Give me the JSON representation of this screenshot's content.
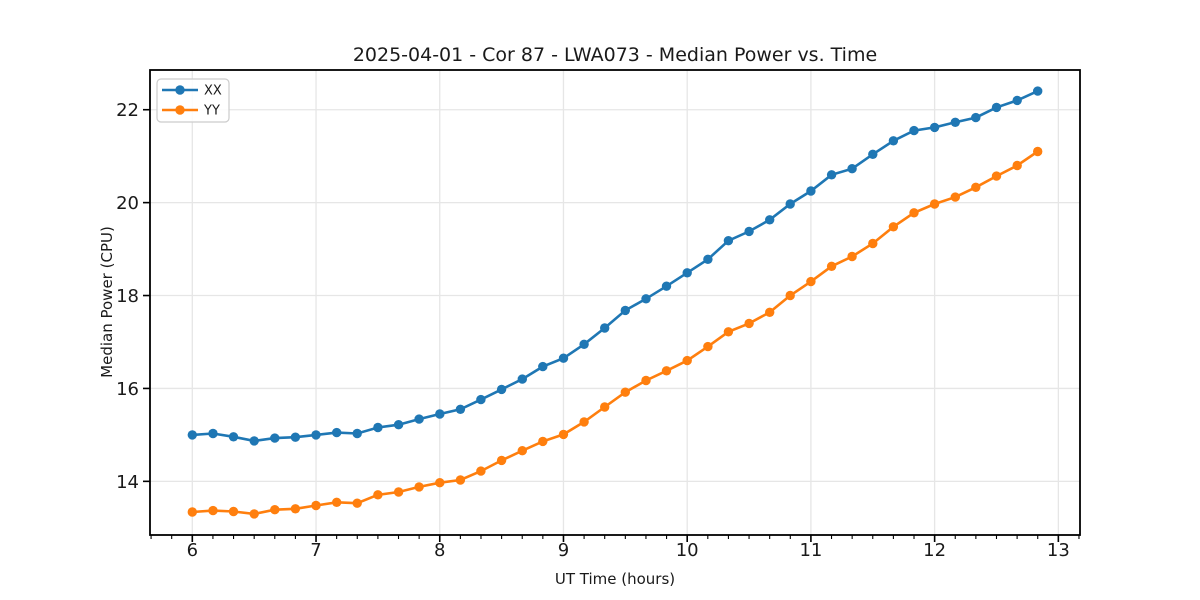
{
  "chart_data": {
    "type": "line",
    "title": "2025-04-01 - Cor 87 - LWA073 - Median Power vs. Time",
    "xlabel": "UT Time (hours)",
    "ylabel": "Median Power (CPU)",
    "grid": true,
    "legend_position": "upper left",
    "xlim": [
      5.658,
      13.175
    ],
    "ylim": [
      12.845,
      22.855
    ],
    "x_ticks": [
      6,
      7,
      8,
      9,
      10,
      11,
      12,
      13
    ],
    "y_ticks": [
      14,
      16,
      18,
      20,
      22
    ],
    "x_minor_step": 0.1667,
    "grid_color": "#e6e6e6",
    "spine_color": "#000000",
    "x": [
      6.0,
      6.167,
      6.333,
      6.5,
      6.667,
      6.833,
      7.0,
      7.167,
      7.333,
      7.5,
      7.667,
      7.833,
      8.0,
      8.167,
      8.333,
      8.5,
      8.667,
      8.833,
      9.0,
      9.167,
      9.333,
      9.5,
      9.667,
      9.833,
      10.0,
      10.167,
      10.333,
      10.5,
      10.667,
      10.833,
      11.0,
      11.167,
      11.333,
      11.5,
      11.667,
      11.833,
      12.0,
      12.167,
      12.333,
      12.5,
      12.667,
      12.833
    ],
    "series": [
      {
        "name": "XX",
        "color": "#1f77b4",
        "values": [
          15.0,
          15.03,
          14.96,
          14.87,
          14.93,
          14.95,
          15.0,
          15.05,
          15.03,
          15.16,
          15.22,
          15.34,
          15.45,
          15.55,
          15.76,
          15.98,
          16.2,
          16.47,
          16.65,
          16.95,
          17.3,
          17.68,
          17.93,
          18.2,
          18.49,
          18.78,
          19.18,
          19.38,
          19.63,
          19.97,
          20.25,
          20.6,
          20.73,
          21.04,
          21.33,
          21.55,
          21.62,
          21.73,
          21.83,
          22.05,
          22.2,
          22.4
        ]
      },
      {
        "name": "YY",
        "color": "#ff7f0e",
        "values": [
          13.34,
          13.37,
          13.35,
          13.3,
          13.39,
          13.41,
          13.48,
          13.55,
          13.53,
          13.71,
          13.77,
          13.88,
          13.97,
          14.03,
          14.22,
          14.45,
          14.66,
          14.86,
          15.01,
          15.28,
          15.6,
          15.92,
          16.17,
          16.38,
          16.6,
          16.9,
          17.22,
          17.4,
          17.64,
          18.0,
          18.3,
          18.63,
          18.84,
          19.12,
          19.48,
          19.78,
          19.97,
          20.12,
          20.33,
          20.57,
          20.8,
          21.1
        ]
      }
    ]
  }
}
